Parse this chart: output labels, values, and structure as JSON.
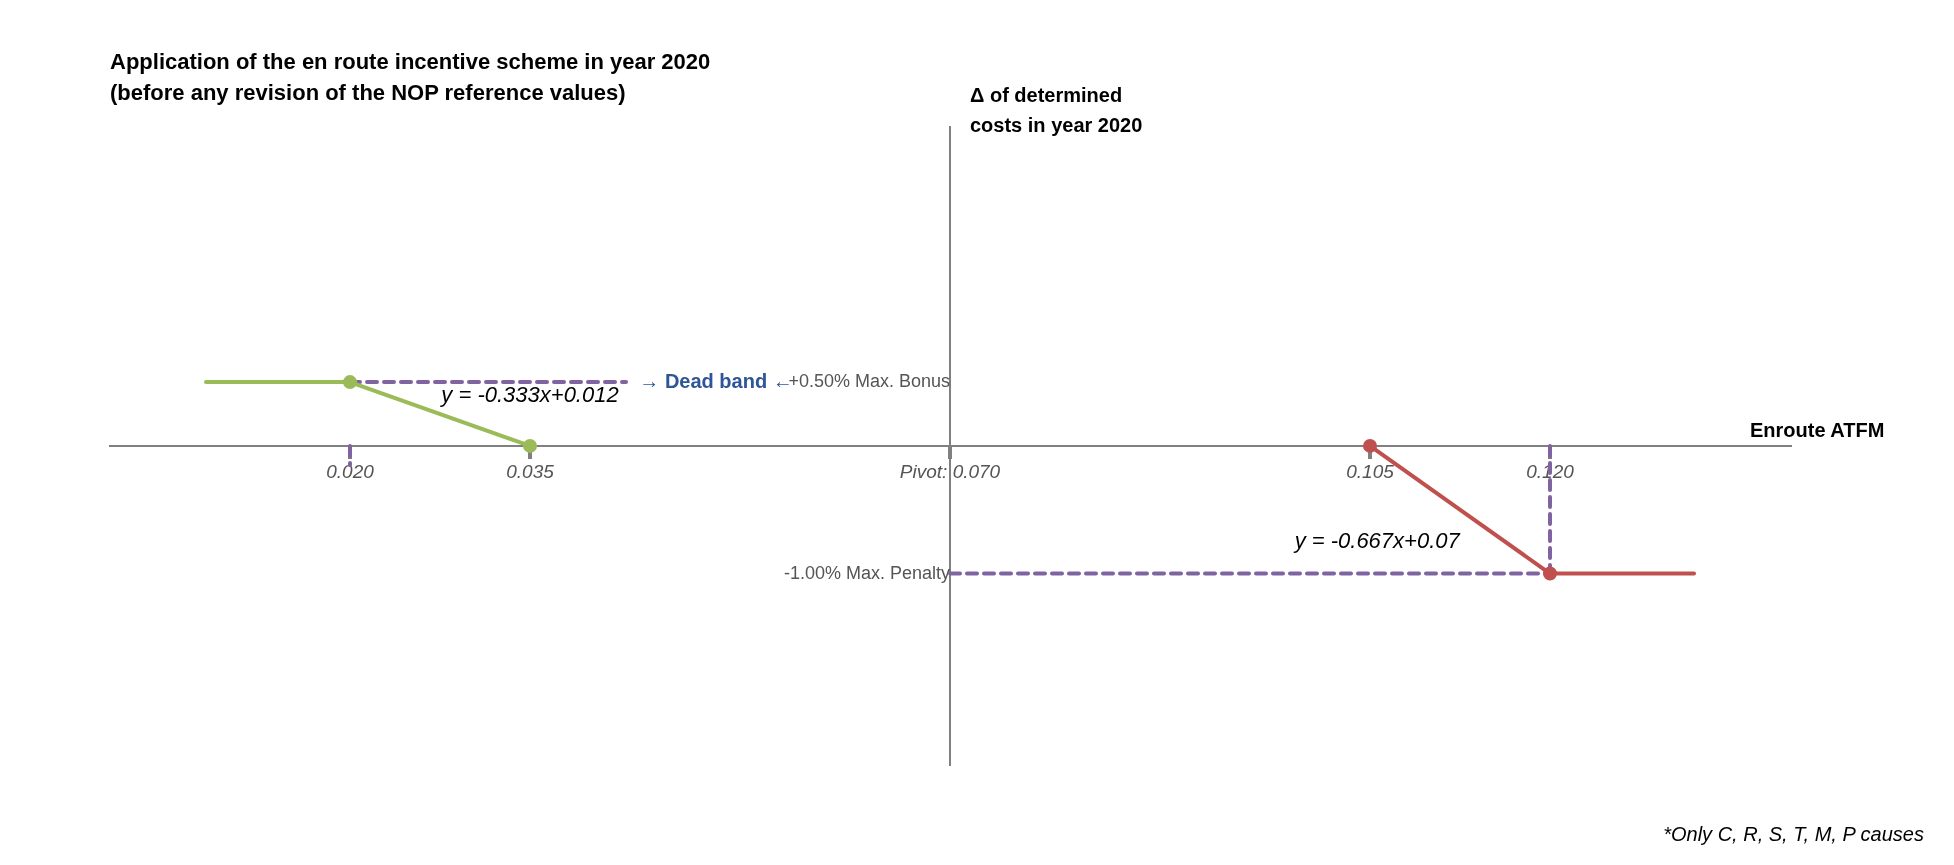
{
  "chart_data": {
    "type": "line",
    "title": "Application of the en route incentive scheme in year 2020",
    "subtitle": "(before any revision of the NOP reference values)",
    "xlabel": "Enroute ATFM",
    "ylabel": "Δ of determined costs in year 2020",
    "xlim": [
      0,
      0.14
    ],
    "ylim": [
      -2.5,
      2.5
    ],
    "xticks": [
      {
        "value": 0.02,
        "label": "0.020"
      },
      {
        "value": 0.035,
        "label": "0.035"
      },
      {
        "value": 0.07,
        "label": "Pivot: 0.070"
      },
      {
        "value": 0.105,
        "label": "0.105"
      },
      {
        "value": 0.12,
        "label": "0.120"
      }
    ],
    "yticks": [
      {
        "value": 0.5,
        "label": "+0.50% Max. Bonus"
      },
      {
        "value": -1,
        "label": "-1.00% Max. Penalty"
      }
    ],
    "grid": false,
    "legend": false,
    "series": [
      {
        "color": "#9bbb59",
        "x": [
          0.008,
          0.02
        ],
        "values": [
          0.5,
          0.5
        ],
        "line_style": "solid"
      },
      {
        "color": "#9bbb59",
        "x": [
          0.02,
          0.035
        ],
        "values": [
          0.5,
          0
        ],
        "marker": "circle",
        "line_style": "solid"
      },
      {
        "color": "#c0504d",
        "x": [
          0.105,
          0.12
        ],
        "values": [
          0,
          -1
        ],
        "marker": "circle",
        "line_style": "solid"
      },
      {
        "color": "#c0504d",
        "x": [
          0.12,
          0.132
        ],
        "values": [
          -1,
          -1
        ],
        "line_style": "solid"
      },
      {
        "color": "#8064a2",
        "x": [
          0.02,
          0.043
        ],
        "values": [
          0.5,
          0.5
        ],
        "marker": "none",
        "line_style": "dashed"
      },
      {
        "color": "#8064a2",
        "x": [
          0.02,
          0.02
        ],
        "values": [
          0,
          -0.15
        ],
        "marker": "none",
        "line_style": "dashed"
      },
      {
        "color": "#8064a2",
        "x": [
          0.07,
          0.12
        ],
        "values": [
          -1,
          -1
        ],
        "marker": "none",
        "line_style": "dashed"
      },
      {
        "color": "#8064a2",
        "x": [
          0.12,
          0.12
        ],
        "values": [
          0,
          -1
        ],
        "marker": "none",
        "line_style": "dashed"
      }
    ],
    "annotations": [
      "→ Dead band ←",
      "y = -0.333x+0.012",
      "y = -0.667x+0.07",
      "*Only C, R, S, T, M, P causes"
    ]
  }
}
